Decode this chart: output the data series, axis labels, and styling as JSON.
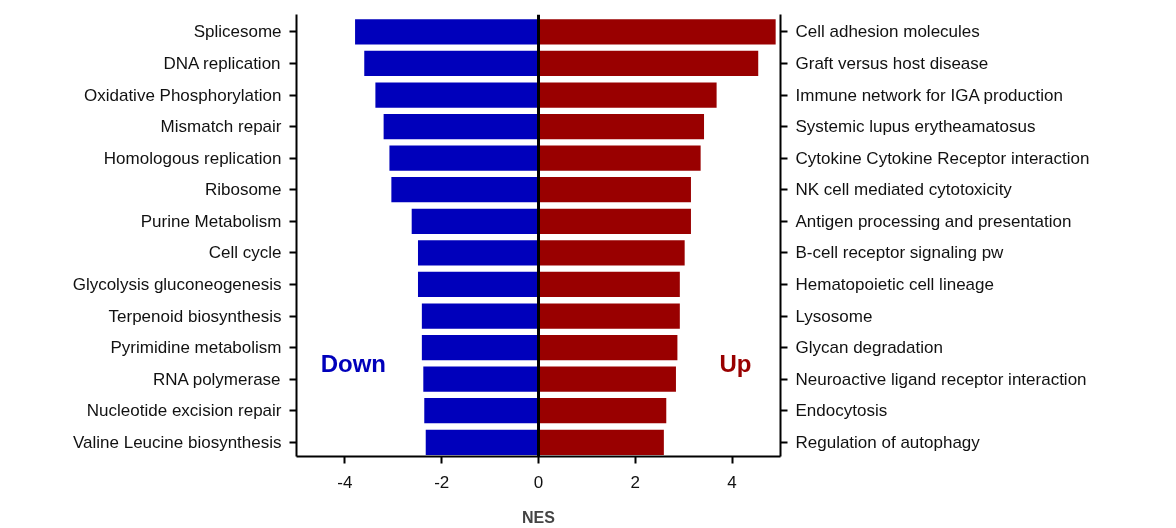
{
  "chart_data": {
    "type": "bar",
    "orientation": "horizontal",
    "stacked": true,
    "xlabel": "NES",
    "xlim": [
      -5,
      5
    ],
    "xticks": [
      -4,
      -2,
      0,
      2,
      4
    ],
    "grid": false,
    "categories": [
      "Splicesome",
      "DNA replication",
      "Oxidative Phosphorylation",
      "Mismatch repair",
      "Homologous replication",
      "Ribosome",
      "Purine Metabolism",
      "Cell cycle",
      "Glycolysis gluconeogenesis",
      "Terpenoid biosynthesis",
      "Pyrimidine metabolism",
      "RNA polymerase",
      "Nucleotide excision repair",
      "Valine Leucine biosynthesis"
    ],
    "y2_categories": [
      "Cell adhesion molecules",
      "Graft versus host disease",
      "Immune network for IGA production",
      "Systemic lupus erytheamatosus",
      "Cytokine Cytokine Receptor interaction",
      "NK cell mediated cytotoxicity",
      "Antigen processing and presentation",
      "B-cell receptor signaling pw",
      "Hematopoietic cell lineage",
      "Lysosome",
      "Glycan degradation",
      "Neuroactive ligand receptor interaction",
      "Endocytosis",
      "Regulation of autophagy"
    ],
    "series": [
      {
        "name": "Down",
        "color": "#0000bb",
        "values": [
          -3.79,
          -3.6,
          -3.37,
          -3.2,
          -3.08,
          -3.04,
          -2.62,
          -2.49,
          -2.49,
          -2.41,
          -2.41,
          -2.38,
          -2.36,
          -2.33
        ]
      },
      {
        "name": "Up",
        "color": "#990000",
        "values": [
          4.9,
          4.54,
          3.68,
          3.42,
          3.35,
          3.15,
          3.15,
          3.02,
          2.92,
          2.92,
          2.87,
          2.84,
          2.64,
          2.59
        ]
      }
    ],
    "ref_lines": [
      {
        "axis": "x",
        "value": 0
      }
    ]
  }
}
